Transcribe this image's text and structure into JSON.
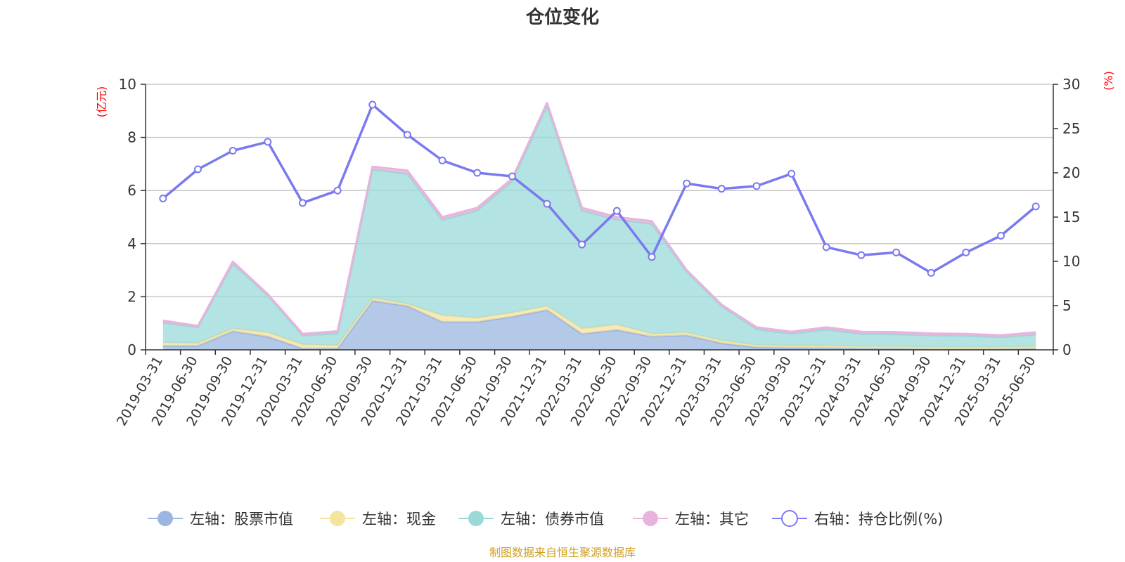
{
  "chart_data": {
    "type": "area",
    "title": "仓位变化",
    "left_axis": {
      "unit": "(亿元)",
      "ylim": [
        0,
        10
      ],
      "ticks": [
        0,
        2,
        4,
        6,
        8,
        10
      ]
    },
    "right_axis": {
      "unit": "(%)",
      "ylim": [
        0,
        30
      ],
      "ticks": [
        0,
        5,
        10,
        15,
        20,
        25,
        30
      ]
    },
    "categories": [
      "2019-03-31",
      "2019-06-30",
      "2019-09-30",
      "2019-12-31",
      "2020-03-31",
      "2020-06-30",
      "2020-09-30",
      "2020-12-31",
      "2021-03-31",
      "2021-06-30",
      "2021-09-30",
      "2021-12-31",
      "2022-03-31",
      "2022-06-30",
      "2022-09-30",
      "2022-12-31",
      "2023-03-31",
      "2023-06-30",
      "2023-09-30",
      "2023-12-31",
      "2024-03-31",
      "2024-06-30",
      "2024-09-30",
      "2024-12-31",
      "2025-03-31",
      "2025-06-30"
    ],
    "series": [
      {
        "name": "左轴：股票市值",
        "axis": "left",
        "stack": true,
        "color": "#9bb6e0",
        "values": [
          0.15,
          0.15,
          0.7,
          0.5,
          0.05,
          0.05,
          1.85,
          1.65,
          1.05,
          1.05,
          1.25,
          1.5,
          0.6,
          0.75,
          0.5,
          0.55,
          0.25,
          0.1,
          0.08,
          0.07,
          0.05,
          0.05,
          0.03,
          0.03,
          0.03,
          0.05
        ]
      },
      {
        "name": "左轴：现金",
        "axis": "left",
        "stack": true,
        "color": "#f5e3a0",
        "values": [
          0.12,
          0.1,
          0.1,
          0.15,
          0.15,
          0.12,
          0.1,
          0.08,
          0.25,
          0.15,
          0.15,
          0.15,
          0.2,
          0.2,
          0.1,
          0.1,
          0.1,
          0.08,
          0.08,
          0.08,
          0.07,
          0.07,
          0.07,
          0.07,
          0.07,
          0.08
        ]
      },
      {
        "name": "左轴：债券市值",
        "axis": "left",
        "stack": true,
        "color": "#9ad9d8",
        "values": [
          0.75,
          0.6,
          2.45,
          1.4,
          0.35,
          0.45,
          4.85,
          4.9,
          3.6,
          4.05,
          4.95,
          7.55,
          4.45,
          3.95,
          4.15,
          2.3,
          1.3,
          0.6,
          0.45,
          0.62,
          0.48,
          0.47,
          0.45,
          0.43,
          0.38,
          0.45
        ]
      },
      {
        "name": "左轴：其它",
        "axis": "left",
        "stack": true,
        "color": "#e8b3dc",
        "values": [
          0.08,
          0.05,
          0.07,
          0.05,
          0.05,
          0.08,
          0.1,
          0.12,
          0.1,
          0.1,
          0.1,
          0.1,
          0.1,
          0.1,
          0.1,
          0.05,
          0.05,
          0.07,
          0.07,
          0.08,
          0.08,
          0.08,
          0.07,
          0.07,
          0.07,
          0.08
        ]
      },
      {
        "name": "右轴：持仓比例(%)",
        "axis": "right",
        "stack": false,
        "color": "#7a7af0",
        "values": [
          17.1,
          20.4,
          22.5,
          23.5,
          16.6,
          18.0,
          27.7,
          24.3,
          21.4,
          20.0,
          19.6,
          16.5,
          11.9,
          15.7,
          10.5,
          18.8,
          18.2,
          18.5,
          19.9,
          11.6,
          10.7,
          11.0,
          8.7,
          11.0,
          12.9,
          16.2
        ]
      }
    ],
    "legend_position": "bottom",
    "grid": true
  },
  "footer": {
    "source": "制图数据来自恒生聚源数据库",
    "source_color": "#d0a020"
  }
}
